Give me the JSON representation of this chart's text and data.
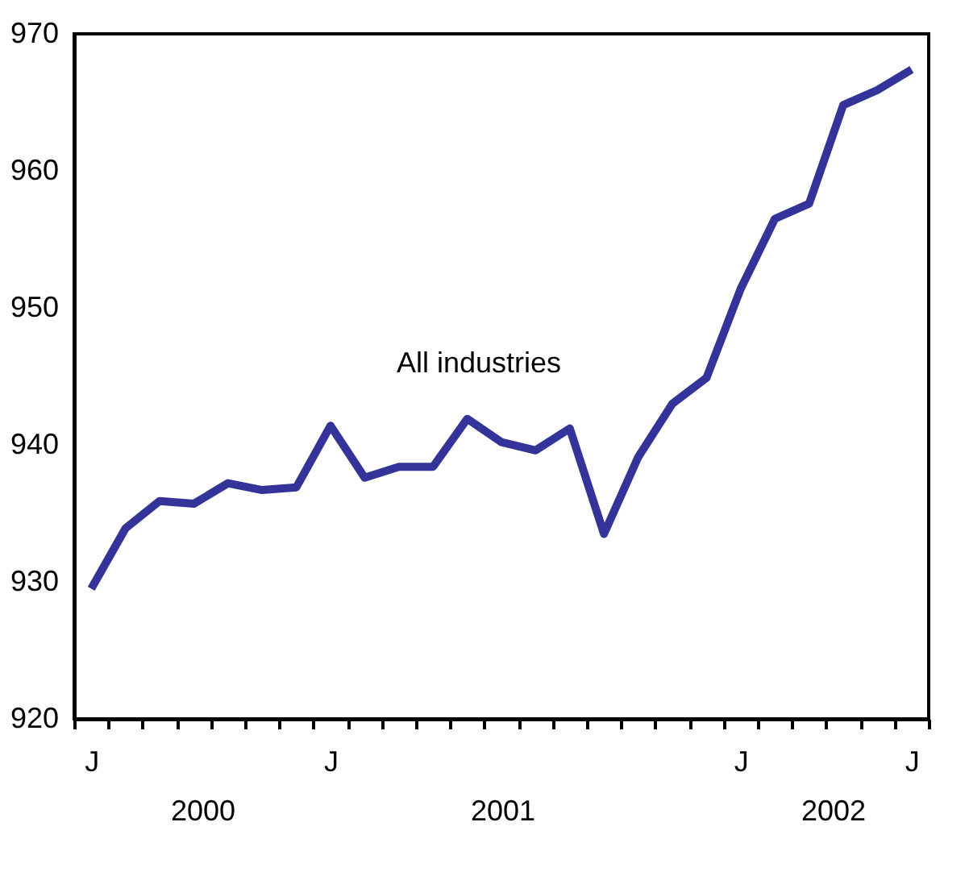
{
  "chart_data": {
    "type": "line",
    "categories": [
      "J",
      null,
      null,
      null,
      null,
      null,
      null,
      "J",
      null,
      null,
      null,
      null,
      null,
      null,
      null,
      null,
      null,
      null,
      null,
      "J",
      null,
      null,
      null,
      null,
      "J"
    ],
    "series": [
      {
        "color": "#333399",
        "values": [
          929.5,
          933.9,
          935.9,
          935.7,
          937.2,
          936.7,
          936.9,
          941.4,
          937.6,
          938.4,
          938.4,
          941.9,
          940.2,
          939.6,
          941.2,
          933.5,
          939.1,
          943.0,
          944.9,
          951.4,
          956.5,
          957.6,
          964.8,
          965.9,
          967.4
        ]
      }
    ],
    "annotations": [
      "All industries",
      "2000",
      "2001",
      "2002"
    ],
    "ylim": [
      920,
      970
    ],
    "yticks": [
      920,
      930,
      940,
      950,
      960,
      970
    ],
    "grid": false,
    "marker": "none",
    "line_style": "solid"
  }
}
